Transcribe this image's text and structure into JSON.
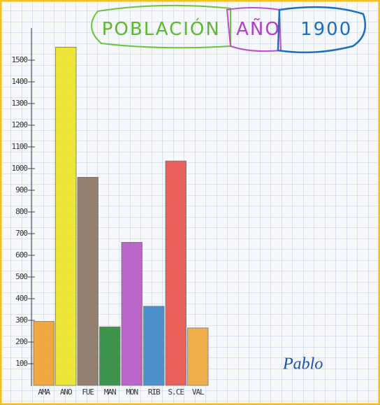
{
  "chart_data": {
    "type": "bar",
    "title_segments": [
      {
        "text": "POBLACIÓN",
        "color": "#5cb82e"
      },
      {
        "text": "AÑO",
        "color": "#b040c8"
      },
      {
        "text": "1900",
        "color": "#1a6fc0"
      }
    ],
    "categories": [
      "AMA",
      "ANO",
      "FUE",
      "MAN",
      "MON",
      "RIB",
      "S.CE",
      "VAL"
    ],
    "values": [
      295,
      1560,
      960,
      270,
      660,
      365,
      1035,
      265
    ],
    "colors": [
      "#f0a030",
      "#ece322",
      "#8a7462",
      "#2a8a3a",
      "#b458c4",
      "#3a86c8",
      "#e8504a",
      "#f0a838"
    ],
    "ylim": [
      0,
      1600
    ],
    "yticks": [
      100,
      200,
      300,
      400,
      500,
      600,
      700,
      800,
      900,
      1000,
      1100,
      1200,
      1300,
      1400,
      1500
    ],
    "annotation": "Pablo"
  }
}
